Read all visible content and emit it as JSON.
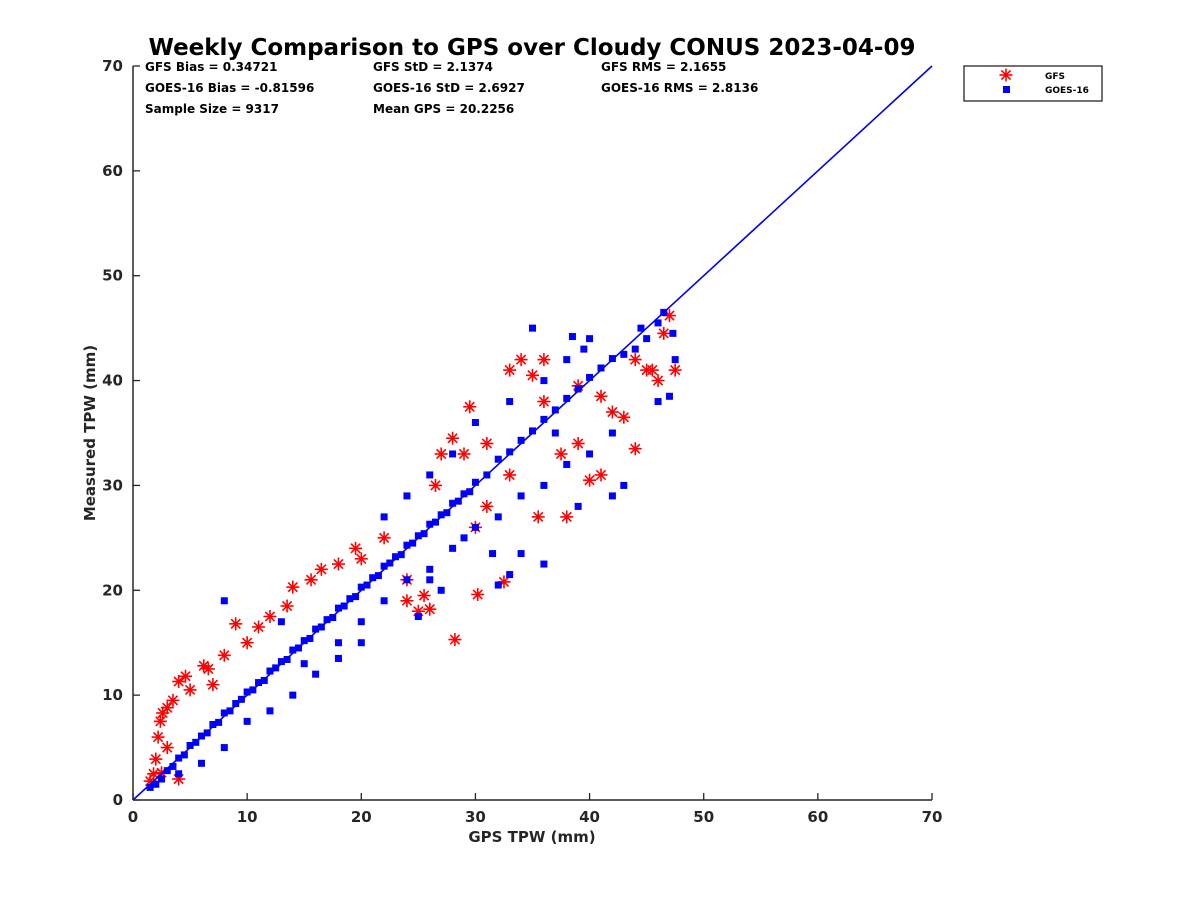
{
  "chart_data": {
    "type": "scatter",
    "title": "Weekly Comparison to GPS over Cloudy CONUS 2023-04-09",
    "xlabel": "GPS TPW (mm)",
    "ylabel": "Measured TPW (mm)",
    "xlim": [
      0,
      70
    ],
    "ylim": [
      0,
      70
    ],
    "x_ticks": [
      "0",
      "10",
      "20",
      "30",
      "40",
      "50",
      "60",
      "70"
    ],
    "y_ticks": [
      "0",
      "10",
      "20",
      "30",
      "40",
      "50",
      "60",
      "70"
    ],
    "grid": false,
    "legend_position": "outside top-right",
    "stats": [
      [
        "GFS Bias = 0.34721",
        "GFS StD = 2.1374",
        "GFS RMS = 2.1655"
      ],
      [
        "GOES-16 Bias = -0.81596",
        "GOES-16 StD = 2.6927",
        "GOES-16 RMS = 2.8136"
      ],
      [
        "Sample Size = 9317",
        "Mean GPS = 20.2256",
        ""
      ]
    ],
    "reference_line": {
      "x": [
        0,
        70
      ],
      "y": [
        0,
        70
      ],
      "color": "#0000ee"
    },
    "series": [
      {
        "name": "GFS",
        "marker": "asterisk",
        "color": "#ff0000",
        "points": [
          [
            1.5,
            1.8
          ],
          [
            1.8,
            2.5
          ],
          [
            2,
            3.9
          ],
          [
            2.2,
            6
          ],
          [
            2.4,
            7.5
          ],
          [
            2.6,
            8.3
          ],
          [
            3,
            8.8
          ],
          [
            3.5,
            9.5
          ],
          [
            4,
            11.3
          ],
          [
            4.6,
            11.8
          ],
          [
            5,
            10.5
          ],
          [
            6.2,
            12.8
          ],
          [
            6.6,
            12.5
          ],
          [
            8,
            13.8
          ],
          [
            9,
            16.8
          ],
          [
            10,
            15
          ],
          [
            12,
            17.5
          ],
          [
            13.5,
            18.5
          ],
          [
            14,
            20.3
          ],
          [
            15.6,
            21
          ],
          [
            16.5,
            22
          ],
          [
            19.5,
            24
          ],
          [
            20,
            23
          ],
          [
            24,
            19
          ],
          [
            25,
            18
          ],
          [
            26,
            18.2
          ],
          [
            25.5,
            19.5
          ],
          [
            28.2,
            15.3
          ],
          [
            30.2,
            19.6
          ],
          [
            32.5,
            20.8
          ],
          [
            33,
            41
          ],
          [
            34,
            42
          ],
          [
            36,
            42
          ],
          [
            35,
            40.5
          ],
          [
            29.5,
            37.5
          ],
          [
            27,
            33
          ],
          [
            28,
            34.5
          ],
          [
            30,
            26
          ],
          [
            31,
            28
          ],
          [
            35.5,
            27
          ],
          [
            37.5,
            33
          ],
          [
            39,
            34
          ],
          [
            41,
            31
          ],
          [
            44,
            33.5
          ],
          [
            44,
            42
          ],
          [
            45,
            41
          ],
          [
            46,
            40
          ],
          [
            46.5,
            44.5
          ],
          [
            47,
            46.2
          ],
          [
            47.5,
            41
          ],
          [
            45.5,
            41
          ],
          [
            42,
            37
          ],
          [
            40,
            30.5
          ],
          [
            4,
            2
          ],
          [
            2.5,
            2.6
          ],
          [
            3,
            5
          ],
          [
            7,
            11
          ],
          [
            11,
            16.5
          ],
          [
            18,
            22.5
          ],
          [
            22,
            25
          ],
          [
            26.5,
            30
          ],
          [
            29,
            33
          ],
          [
            31,
            34
          ],
          [
            36,
            38
          ],
          [
            39,
            39.5
          ],
          [
            41,
            38.5
          ],
          [
            43,
            36.5
          ],
          [
            24,
            21
          ],
          [
            33,
            31
          ],
          [
            38,
            27
          ]
        ]
      },
      {
        "name": "GOES-16",
        "marker": "square",
        "color": "#0000ff",
        "points": [
          [
            1.5,
            1.2
          ],
          [
            2,
            1.5
          ],
          [
            2.5,
            2
          ],
          [
            3,
            2.8
          ],
          [
            3.5,
            3.2
          ],
          [
            4,
            4
          ],
          [
            4.5,
            4.3
          ],
          [
            5,
            5.2
          ],
          [
            5.5,
            5.5
          ],
          [
            6,
            6.1
          ],
          [
            6.5,
            6.4
          ],
          [
            7,
            7.2
          ],
          [
            7.5,
            7.4
          ],
          [
            8,
            8.3
          ],
          [
            8.5,
            8.5
          ],
          [
            9,
            9.2
          ],
          [
            9.5,
            9.6
          ],
          [
            10,
            10.3
          ],
          [
            10.5,
            10.5
          ],
          [
            11,
            11.2
          ],
          [
            11.5,
            11.4
          ],
          [
            12,
            12.3
          ],
          [
            12.5,
            12.6
          ],
          [
            13,
            13.2
          ],
          [
            13.5,
            13.4
          ],
          [
            14,
            14.3
          ],
          [
            14.5,
            14.5
          ],
          [
            15,
            15.2
          ],
          [
            15.5,
            15.4
          ],
          [
            16,
            16.3
          ],
          [
            16.5,
            16.5
          ],
          [
            17,
            17.2
          ],
          [
            17.5,
            17.4
          ],
          [
            18,
            18.3
          ],
          [
            18.5,
            18.5
          ],
          [
            19,
            19.2
          ],
          [
            19.5,
            19.4
          ],
          [
            20,
            20.3
          ],
          [
            20.5,
            20.5
          ],
          [
            21,
            21.2
          ],
          [
            21.5,
            21.4
          ],
          [
            22,
            22.3
          ],
          [
            22.5,
            22.6
          ],
          [
            23,
            23.2
          ],
          [
            23.5,
            23.4
          ],
          [
            24,
            24.3
          ],
          [
            24.5,
            24.5
          ],
          [
            25,
            25.2
          ],
          [
            25.5,
            25.4
          ],
          [
            26,
            26.3
          ],
          [
            26.5,
            26.5
          ],
          [
            27,
            27.2
          ],
          [
            27.5,
            27.4
          ],
          [
            28,
            28.3
          ],
          [
            28.5,
            28.5
          ],
          [
            29,
            29.2
          ],
          [
            29.5,
            29.4
          ],
          [
            30,
            30.3
          ],
          [
            31,
            31
          ],
          [
            32,
            32.5
          ],
          [
            33,
            33.2
          ],
          [
            34,
            34.3
          ],
          [
            35,
            35.2
          ],
          [
            36,
            36.3
          ],
          [
            37,
            37.2
          ],
          [
            38,
            38.3
          ],
          [
            39,
            39.2
          ],
          [
            40,
            40.3
          ],
          [
            41,
            41.2
          ],
          [
            42,
            42.1
          ],
          [
            43,
            42.5
          ],
          [
            44,
            43
          ],
          [
            45,
            44
          ],
          [
            46,
            45.5
          ],
          [
            46.5,
            46.5
          ],
          [
            47.3,
            44.5
          ],
          [
            47.5,
            42
          ],
          [
            47,
            38.5
          ],
          [
            46,
            38
          ],
          [
            35,
            45
          ],
          [
            38.5,
            44.2
          ],
          [
            40,
            44
          ],
          [
            36,
            22.5
          ],
          [
            33,
            21.5
          ],
          [
            34,
            23.5
          ],
          [
            31.5,
            23.5
          ],
          [
            32,
            20.5
          ],
          [
            29,
            25
          ],
          [
            25,
            17.5
          ],
          [
            26,
            21
          ],
          [
            27,
            20
          ],
          [
            8,
            19
          ],
          [
            13,
            17
          ],
          [
            15,
            13
          ],
          [
            18,
            15
          ],
          [
            20,
            17
          ],
          [
            22,
            19
          ],
          [
            24,
            21
          ],
          [
            26,
            22
          ],
          [
            28,
            24
          ],
          [
            30,
            26
          ],
          [
            32,
            27
          ],
          [
            34,
            29
          ],
          [
            36,
            30
          ],
          [
            38,
            32
          ],
          [
            40,
            33
          ],
          [
            42,
            35
          ],
          [
            43,
            30
          ],
          [
            42,
            29
          ],
          [
            39,
            28
          ],
          [
            10,
            7.5
          ],
          [
            12,
            8.5
          ],
          [
            14,
            10
          ],
          [
            16,
            12
          ],
          [
            18,
            13.5
          ],
          [
            20,
            15
          ],
          [
            8,
            5
          ],
          [
            6,
            3.5
          ],
          [
            4,
            2.5
          ],
          [
            22,
            27
          ],
          [
            24,
            29
          ],
          [
            26,
            31
          ],
          [
            28,
            33
          ],
          [
            30,
            36
          ],
          [
            33,
            38
          ],
          [
            36,
            40
          ],
          [
            38,
            42
          ],
          [
            39.5,
            43
          ],
          [
            44.5,
            45
          ],
          [
            37,
            35
          ]
        ]
      }
    ]
  }
}
